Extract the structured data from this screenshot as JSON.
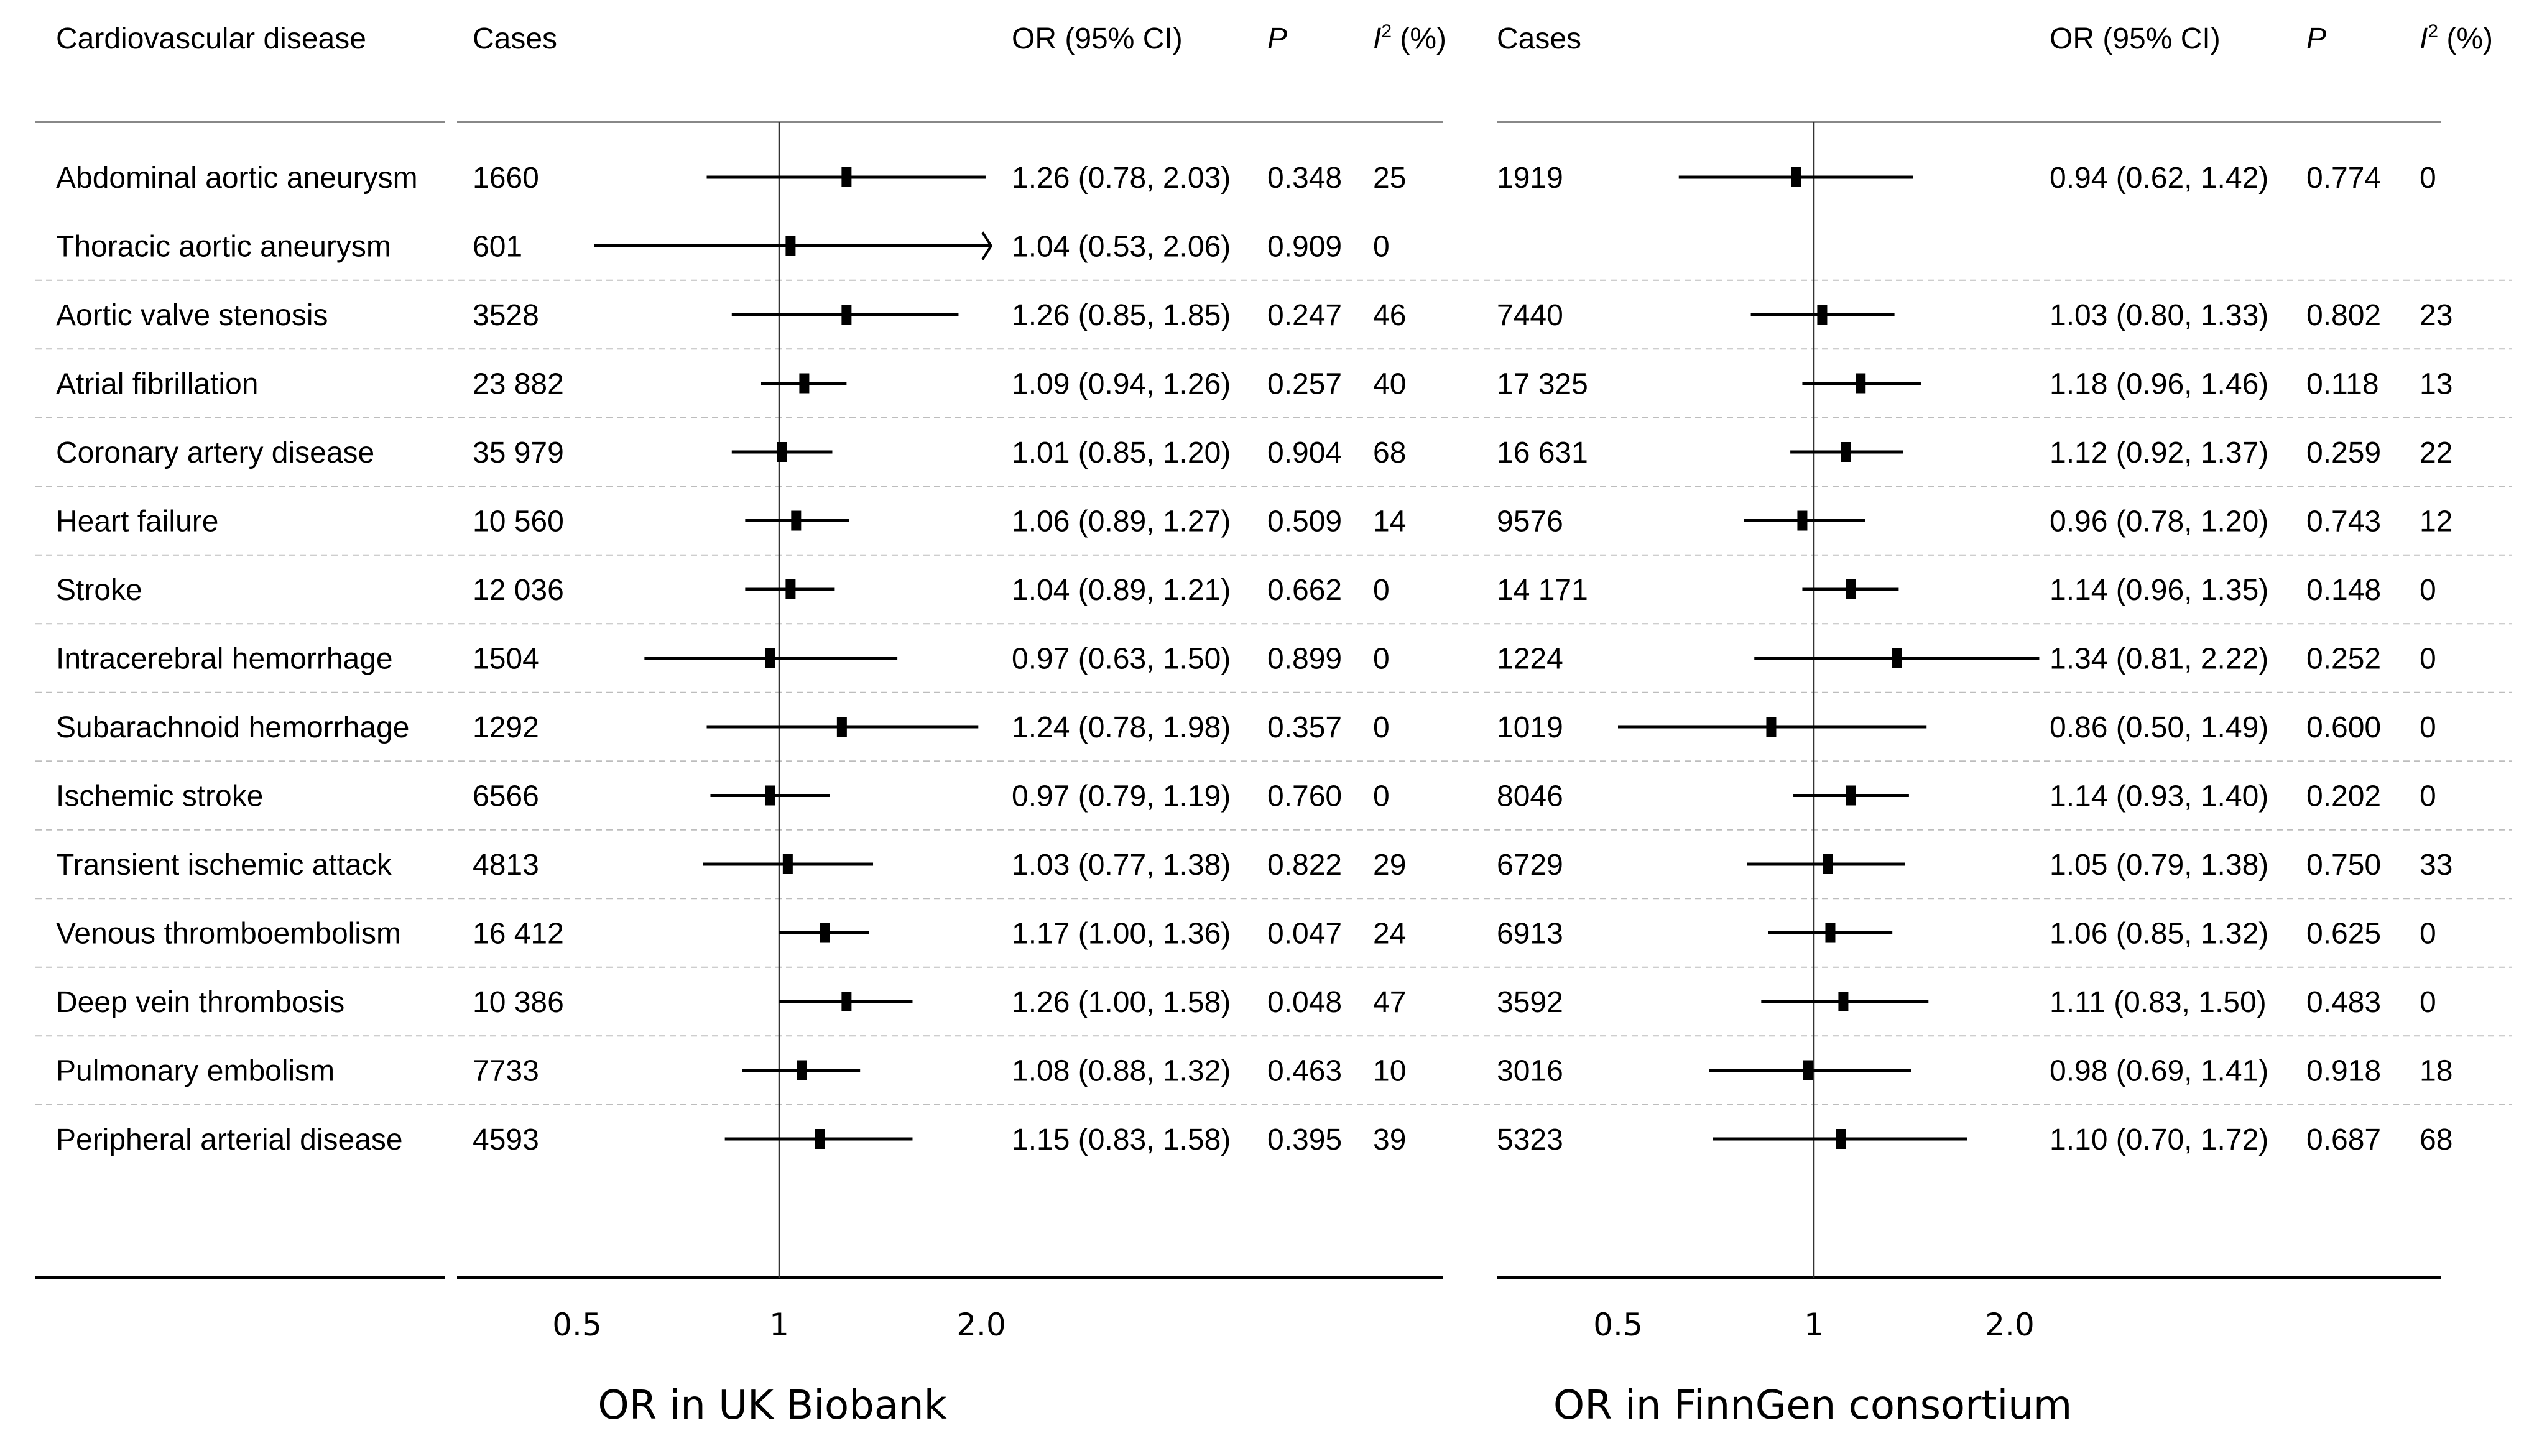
{
  "chart_data": {
    "type": "forest",
    "scale": "log",
    "reference_line": 1,
    "headers": {
      "disease": "Cardiovascular disease",
      "cases": "Cases",
      "or_ci": "OR (95% CI)",
      "p": "P",
      "i2_base": "I",
      "i2_sup": "2",
      "i2_unit": " (%)"
    },
    "panels": [
      {
        "name": "UK Biobank",
        "xlabel": "OR in UK Biobank",
        "ticks": [
          {
            "value": 0.5,
            "label": "0.5"
          },
          {
            "value": 1,
            "label": "1"
          },
          {
            "value": 2.0,
            "label": "2.0"
          }
        ],
        "xlim": [
          0.4,
          4.0
        ]
      },
      {
        "name": "FinnGen consortium",
        "xlabel": "OR in FinnGen consortium",
        "ticks": [
          {
            "value": 0.5,
            "label": "0.5"
          },
          {
            "value": 1,
            "label": "1"
          },
          {
            "value": 2.0,
            "label": "2.0"
          }
        ],
        "xlim": [
          0.4,
          4.0
        ]
      }
    ],
    "rows": [
      {
        "disease": "Abdominal aortic aneurysm",
        "ukb": {
          "cases": "1660",
          "or": 1.26,
          "lo": 0.78,
          "hi": 2.03,
          "ci_text": "1.26 (0.78, 2.03)",
          "p": "0.348",
          "i2": "25"
        },
        "fin": {
          "cases": "1919",
          "or": 0.94,
          "lo": 0.62,
          "hi": 1.42,
          "ci_text": "0.94 (0.62, 1.42)",
          "p": "0.774",
          "i2": "0"
        }
      },
      {
        "disease": "Thoracic aortic aneurysm",
        "ukb": {
          "cases": "601",
          "or": 1.04,
          "lo": 0.53,
          "hi": 2.06,
          "ci_text": "1.04 (0.53, 2.06)",
          "p": "0.909",
          "i2": "0",
          "arrow": true
        },
        "fin": null
      },
      {
        "disease": "Aortic valve stenosis",
        "ukb": {
          "cases": "3528",
          "or": 1.26,
          "lo": 0.85,
          "hi": 1.85,
          "ci_text": "1.26 (0.85, 1.85)",
          "p": "0.247",
          "i2": "46"
        },
        "fin": {
          "cases": "7440",
          "or": 1.03,
          "lo": 0.8,
          "hi": 1.33,
          "ci_text": "1.03 (0.80, 1.33)",
          "p": "0.802",
          "i2": "23"
        }
      },
      {
        "disease": "Atrial fibrillation",
        "ukb": {
          "cases": "23 882",
          "or": 1.09,
          "lo": 0.94,
          "hi": 1.26,
          "ci_text": "1.09 (0.94, 1.26)",
          "p": "0.257",
          "i2": "40"
        },
        "fin": {
          "cases": "17 325",
          "or": 1.18,
          "lo": 0.96,
          "hi": 1.46,
          "ci_text": "1.18 (0.96, 1.46)",
          "p": "0.118",
          "i2": "13"
        }
      },
      {
        "disease": "Coronary artery disease",
        "ukb": {
          "cases": "35 979",
          "or": 1.01,
          "lo": 0.85,
          "hi": 1.2,
          "ci_text": "1.01 (0.85, 1.20)",
          "p": "0.904",
          "i2": "68"
        },
        "fin": {
          "cases": "16 631",
          "or": 1.12,
          "lo": 0.92,
          "hi": 1.37,
          "ci_text": "1.12 (0.92, 1.37)",
          "p": "0.259",
          "i2": "22"
        }
      },
      {
        "disease": "Heart failure",
        "ukb": {
          "cases": "10 560",
          "or": 1.06,
          "lo": 0.89,
          "hi": 1.27,
          "ci_text": "1.06 (0.89, 1.27)",
          "p": "0.509",
          "i2": "14"
        },
        "fin": {
          "cases": "9576",
          "or": 0.96,
          "lo": 0.78,
          "hi": 1.2,
          "ci_text": "0.96 (0.78, 1.20)",
          "p": "0.743",
          "i2": "12"
        }
      },
      {
        "disease": "Stroke",
        "ukb": {
          "cases": "12 036",
          "or": 1.04,
          "lo": 0.89,
          "hi": 1.21,
          "ci_text": "1.04 (0.89, 1.21)",
          "p": "0.662",
          "i2": "0"
        },
        "fin": {
          "cases": "14 171",
          "or": 1.14,
          "lo": 0.96,
          "hi": 1.35,
          "ci_text": "1.14 (0.96, 1.35)",
          "p": "0.148",
          "i2": "0"
        }
      },
      {
        "disease": "Intracerebral hemorrhage",
        "ukb": {
          "cases": "1504",
          "or": 0.97,
          "lo": 0.63,
          "hi": 1.5,
          "ci_text": "0.97 (0.63, 1.50)",
          "p": "0.899",
          "i2": "0"
        },
        "fin": {
          "cases": "1224",
          "or": 1.34,
          "lo": 0.81,
          "hi": 2.22,
          "ci_text": "1.34 (0.81, 2.22)",
          "p": "0.252",
          "i2": "0"
        }
      },
      {
        "disease": "Subarachnoid hemorrhage",
        "ukb": {
          "cases": "1292",
          "or": 1.24,
          "lo": 0.78,
          "hi": 1.98,
          "ci_text": "1.24 (0.78, 1.98)",
          "p": "0.357",
          "i2": "0"
        },
        "fin": {
          "cases": "1019",
          "or": 0.86,
          "lo": 0.5,
          "hi": 1.49,
          "ci_text": "0.86 (0.50, 1.49)",
          "p": "0.600",
          "i2": "0"
        }
      },
      {
        "disease": "Ischemic stroke",
        "ukb": {
          "cases": "6566",
          "or": 0.97,
          "lo": 0.79,
          "hi": 1.19,
          "ci_text": "0.97 (0.79, 1.19)",
          "p": "0.760",
          "i2": "0"
        },
        "fin": {
          "cases": "8046",
          "or": 1.14,
          "lo": 0.93,
          "hi": 1.4,
          "ci_text": "1.14 (0.93, 1.40)",
          "p": "0.202",
          "i2": "0"
        }
      },
      {
        "disease": "Transient ischemic attack",
        "ukb": {
          "cases": "4813",
          "or": 1.03,
          "lo": 0.77,
          "hi": 1.38,
          "ci_text": "1.03 (0.77, 1.38)",
          "p": "0.822",
          "i2": "29"
        },
        "fin": {
          "cases": "6729",
          "or": 1.05,
          "lo": 0.79,
          "hi": 1.38,
          "ci_text": "1.05 (0.79, 1.38)",
          "p": "0.750",
          "i2": "33"
        }
      },
      {
        "disease": "Venous thromboembolism",
        "ukb": {
          "cases": "16 412",
          "or": 1.17,
          "lo": 1.0,
          "hi": 1.36,
          "ci_text": "1.17 (1.00, 1.36)",
          "p": "0.047",
          "i2": "24"
        },
        "fin": {
          "cases": "6913",
          "or": 1.06,
          "lo": 0.85,
          "hi": 1.32,
          "ci_text": "1.06 (0.85, 1.32)",
          "p": "0.625",
          "i2": "0"
        }
      },
      {
        "disease": "Deep vein thrombosis",
        "ukb": {
          "cases": "10 386",
          "or": 1.26,
          "lo": 1.0,
          "hi": 1.58,
          "ci_text": "1.26 (1.00, 1.58)",
          "p": "0.048",
          "i2": "47"
        },
        "fin": {
          "cases": "3592",
          "or": 1.11,
          "lo": 0.83,
          "hi": 1.5,
          "ci_text": "1.11 (0.83, 1.50)",
          "p": "0.483",
          "i2": "0"
        }
      },
      {
        "disease": "Pulmonary embolism",
        "ukb": {
          "cases": "7733",
          "or": 1.08,
          "lo": 0.88,
          "hi": 1.32,
          "ci_text": "1.08 (0.88, 1.32)",
          "p": "0.463",
          "i2": "10"
        },
        "fin": {
          "cases": "3016",
          "or": 0.98,
          "lo": 0.69,
          "hi": 1.41,
          "ci_text": "0.98 (0.69, 1.41)",
          "p": "0.918",
          "i2": "18"
        }
      },
      {
        "disease": "Peripheral arterial disease",
        "ukb": {
          "cases": "4593",
          "or": 1.15,
          "lo": 0.83,
          "hi": 1.58,
          "ci_text": "1.15 (0.83, 1.58)",
          "p": "0.395",
          "i2": "39"
        },
        "fin": {
          "cases": "5323",
          "or": 1.1,
          "lo": 0.7,
          "hi": 1.72,
          "ci_text": "1.10 (0.70, 1.72)",
          "p": "0.687",
          "i2": "68"
        }
      }
    ]
  }
}
